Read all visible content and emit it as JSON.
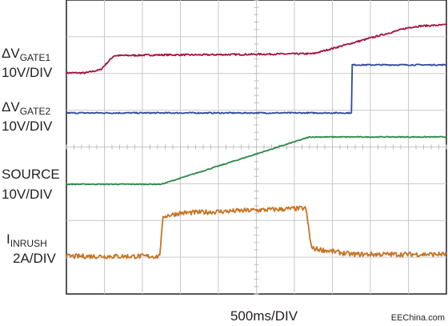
{
  "chart_data": {
    "type": "line",
    "title": "",
    "xlabel": "500ms/DIV",
    "x_unit_per_div": 500,
    "x_divisions": 10,
    "y_divisions": 8,
    "grid": true,
    "watermark": "EEChina.com",
    "channel_labels": [
      {
        "main": "ΔV",
        "sub": "GATE1",
        "scale": "10V/DIV"
      },
      {
        "main": "ΔV",
        "sub": "GATE2",
        "scale": "10V/DIV"
      },
      {
        "main": "SOURCE",
        "sub": "",
        "scale": "10V/DIV"
      },
      {
        "main": "I",
        "sub": "INRUSH",
        "scale": "2A/DIV"
      }
    ],
    "series": [
      {
        "name": "ΔVGATE1",
        "color": "#a3143f",
        "noise": 0.02,
        "x": [
          0,
          0.5,
          0.9,
          1.25,
          2.5,
          3.5,
          6.5,
          9.0,
          9.3,
          10.0
        ],
        "y": [
          0.0,
          0.0,
          0.08,
          0.43,
          0.45,
          0.45,
          0.48,
          1.13,
          1.17,
          1.2
        ]
      },
      {
        "name": "ΔVGATE2",
        "color": "#2e4a9a",
        "noise": 0.015,
        "x": [
          0,
          7.5,
          7.52,
          10.0
        ],
        "y": [
          0.0,
          0.0,
          1.2,
          1.2
        ]
      },
      {
        "name": "SOURCE",
        "color": "#2f8a4a",
        "noise": 0.012,
        "x": [
          0,
          2.5,
          6.4,
          10.0
        ],
        "y": [
          0.0,
          0.0,
          1.18,
          1.18
        ]
      },
      {
        "name": "IINRUSH",
        "color": "#c77426",
        "noise": 0.06,
        "x": [
          0,
          2.45,
          2.55,
          3.0,
          6.3,
          6.45,
          7.5,
          10.0
        ],
        "y": [
          0.0,
          0.0,
          1.0,
          1.08,
          1.2,
          0.2,
          0.05,
          0.05
        ]
      }
    ]
  }
}
